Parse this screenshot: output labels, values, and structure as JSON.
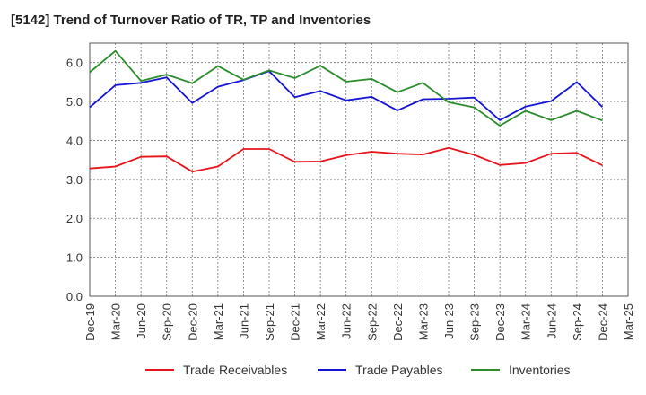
{
  "chart_data": {
    "type": "line",
    "title": "[5142]  Trend of Turnover Ratio of TR, TP and Inventories",
    "xlabel": "",
    "ylabel": "",
    "ylim": [
      0,
      6.5
    ],
    "y_ticks": [
      "0.0",
      "1.0",
      "2.0",
      "3.0",
      "4.0",
      "5.0",
      "6.0"
    ],
    "x_tick_labels": [
      "Dec-19",
      "Mar-20",
      "Jun-20",
      "Sep-20",
      "Dec-20",
      "Mar-21",
      "Jun-21",
      "Sep-21",
      "Dec-21",
      "Mar-22",
      "Jun-22",
      "Sep-22",
      "Dec-22",
      "Mar-23",
      "Jun-23",
      "Sep-23",
      "Dec-23",
      "Mar-24",
      "Jun-24",
      "Sep-24",
      "Dec-24",
      "Mar-25"
    ],
    "x": [
      "Dec-19",
      "Mar-20",
      "Jun-20",
      "Sep-20",
      "Dec-20",
      "Mar-21",
      "Jun-21",
      "Sep-21",
      "Dec-21",
      "Mar-22",
      "Jun-22",
      "Sep-22",
      "Dec-22",
      "Mar-23",
      "Jun-23",
      "Sep-23",
      "Dec-23",
      "Mar-24",
      "Jun-24",
      "Sep-24",
      "Dec-24"
    ],
    "grid": true,
    "legend_position": "bottom",
    "series": [
      {
        "name": "Trade Receivables",
        "color": "#e8141c",
        "values": [
          3.28,
          3.33,
          3.58,
          3.59,
          3.2,
          3.33,
          3.78,
          3.78,
          3.45,
          3.46,
          3.62,
          3.71,
          3.66,
          3.64,
          3.81,
          3.63,
          3.37,
          3.42,
          3.66,
          3.68,
          3.36
        ]
      },
      {
        "name": "Trade Payables",
        "color": "#1414d4",
        "values": [
          4.85,
          5.42,
          5.48,
          5.62,
          4.96,
          5.38,
          5.55,
          5.78,
          5.11,
          5.27,
          5.03,
          5.12,
          4.77,
          5.06,
          5.07,
          5.1,
          4.52,
          4.87,
          5.01,
          5.5,
          4.86
        ]
      },
      {
        "name": "Inventories",
        "color": "#2a8c2a",
        "values": [
          5.75,
          6.3,
          5.53,
          5.69,
          5.47,
          5.91,
          5.56,
          5.8,
          5.6,
          5.92,
          5.51,
          5.58,
          5.24,
          5.48,
          4.98,
          4.85,
          4.38,
          4.76,
          4.52,
          4.76,
          4.51
        ]
      }
    ]
  }
}
